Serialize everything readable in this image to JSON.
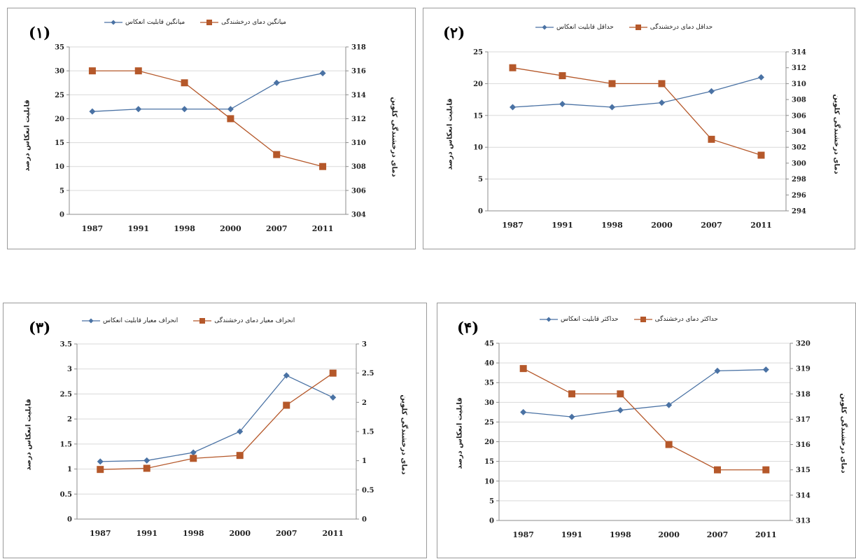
{
  "chart_data": [
    {
      "type": "line",
      "panel_label": "(۱)",
      "categories": [
        "1987",
        "1991",
        "1998",
        "2000",
        "2007",
        "2011"
      ],
      "series": [
        {
          "name": "میانگین قابلیت انعکاس",
          "axis": "left",
          "values": [
            21.5,
            22,
            22,
            22,
            27.5,
            29.5
          ],
          "color": "#4a72a4",
          "marker": "diamond"
        },
        {
          "name": "میانگین دمای درخشندگی",
          "axis": "right",
          "values": [
            316,
            316,
            315,
            312,
            309,
            308
          ],
          "color": "#b5582a",
          "marker": "square"
        }
      ],
      "ylabel_left": "قابلیت انعکاس درصد",
      "ylabel_right": "دمای درخشندگی کلوین",
      "ylim_left": [
        0,
        35
      ],
      "yticks_left": [
        "0",
        "5",
        "10",
        "15",
        "20",
        "25",
        "30",
        "35"
      ],
      "ylim_right": [
        304,
        318
      ],
      "yticks_right": [
        "304",
        "306",
        "308",
        "310",
        "312",
        "314",
        "316",
        "318"
      ],
      "grid": true,
      "legend": "top"
    },
    {
      "type": "line",
      "panel_label": "(۲)",
      "categories": [
        "1987",
        "1991",
        "1998",
        "2000",
        "2007",
        "2011"
      ],
      "series": [
        {
          "name": "حداقل قابلیت انعکاس",
          "axis": "left",
          "values": [
            16.3,
            16.8,
            16.3,
            17,
            18.8,
            21
          ],
          "color": "#4a72a4",
          "marker": "diamond"
        },
        {
          "name": "حداقل دمای درخشندگی",
          "axis": "right",
          "values": [
            312,
            311,
            310,
            310,
            303,
            301
          ],
          "color": "#b5582a",
          "marker": "square"
        }
      ],
      "ylabel_left": "قابلیت انعکاس درصد",
      "ylabel_right": "دمای درخشندگی کلوین",
      "ylim_left": [
        0,
        25
      ],
      "yticks_left": [
        "0",
        "5",
        "10",
        "15",
        "20",
        "25"
      ],
      "ylim_right": [
        294,
        314
      ],
      "yticks_right": [
        "294",
        "296",
        "298",
        "300",
        "302",
        "304",
        "306",
        "308",
        "310",
        "312",
        "314"
      ],
      "grid": true,
      "legend": "top"
    },
    {
      "type": "line",
      "panel_label": "(۳)",
      "categories": [
        "1987",
        "1991",
        "1998",
        "2000",
        "2007",
        "2011"
      ],
      "series": [
        {
          "name": "انحراف معیار قابلیت انعکاس",
          "axis": "left",
          "values": [
            1.15,
            1.17,
            1.33,
            1.75,
            2.87,
            2.43
          ],
          "color": "#4a72a4",
          "marker": "diamond"
        },
        {
          "name": "انحراف معیار دمای درخشندگی",
          "axis": "right",
          "values": [
            0.85,
            0.87,
            1.04,
            1.09,
            1.95,
            2.5
          ],
          "color": "#b5582a",
          "marker": "square"
        }
      ],
      "ylabel_left": "قابلیت انعکاس درصد",
      "ylabel_right": "دمای درخشندگی کلوین",
      "ylim_left": [
        0,
        3.5
      ],
      "yticks_left": [
        "0",
        "0.5",
        "1",
        "1.5",
        "2",
        "2.5",
        "3",
        "3.5"
      ],
      "ylim_right": [
        0,
        3
      ],
      "yticks_right": [
        "0",
        "0.5",
        "1",
        "1.5",
        "2",
        "2.5",
        "3"
      ],
      "grid": true,
      "legend": "top"
    },
    {
      "type": "line",
      "panel_label": "(۴)",
      "categories": [
        "1987",
        "1991",
        "1998",
        "2000",
        "2007",
        "2011"
      ],
      "series": [
        {
          "name": "حداکثر قابلیت انعکاس",
          "axis": "left",
          "values": [
            27.5,
            26.3,
            28,
            29.3,
            38,
            38.3
          ],
          "color": "#4a72a4",
          "marker": "diamond"
        },
        {
          "name": "حداکثر دمای درخشندگی",
          "axis": "right",
          "values": [
            319,
            318,
            318,
            316,
            315,
            315
          ],
          "color": "#b5582a",
          "marker": "square"
        }
      ],
      "ylabel_left": "قابلیت انعکاس درصد",
      "ylabel_right": "دمای درخشندگی کلوین",
      "ylim_left": [
        0,
        45
      ],
      "yticks_left": [
        "0",
        "5",
        "10",
        "15",
        "20",
        "25",
        "30",
        "35",
        "40",
        "45"
      ],
      "ylim_right": [
        313,
        320
      ],
      "yticks_right": [
        "313",
        "314",
        "315",
        "316",
        "317",
        "318",
        "319",
        "320"
      ],
      "grid": true,
      "legend": "top"
    }
  ]
}
